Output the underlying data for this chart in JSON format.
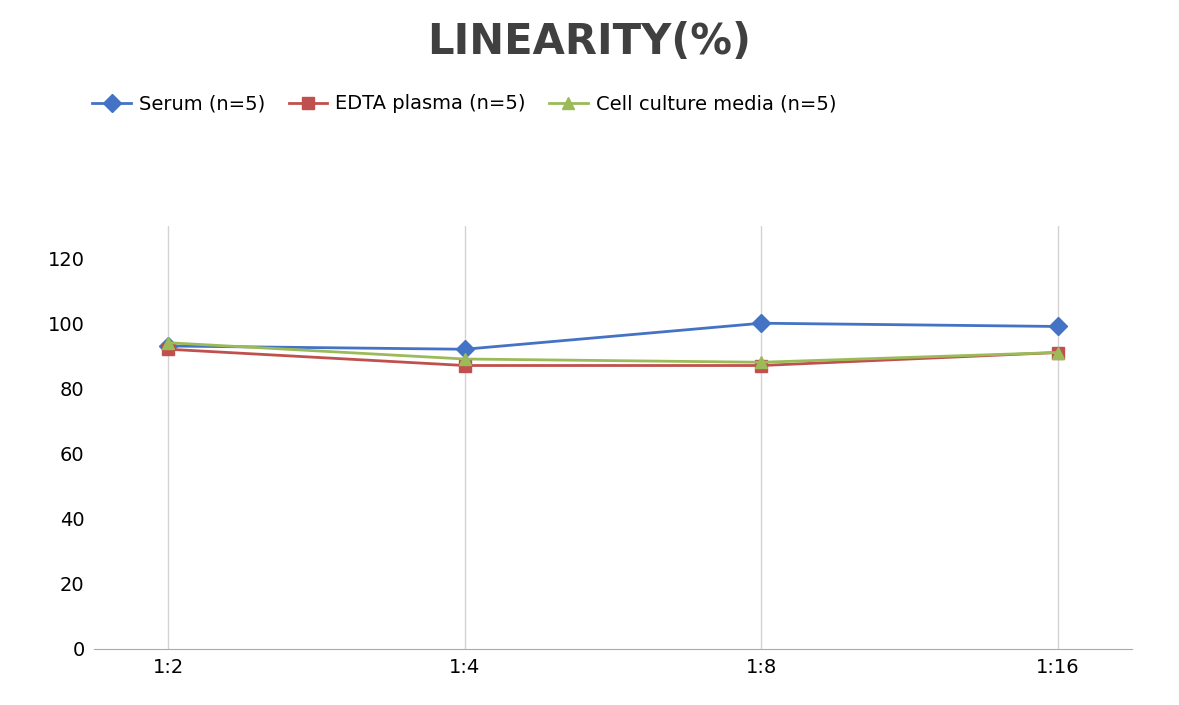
{
  "title": "LINEARITY(%)",
  "title_fontsize": 30,
  "title_fontweight": "bold",
  "title_color": "#404040",
  "x_labels": [
    "1:2",
    "1:4",
    "1:8",
    "1:16"
  ],
  "x_positions": [
    0,
    1,
    2,
    3
  ],
  "series": [
    {
      "label": "Serum (n=5)",
      "values": [
        93,
        92,
        100,
        99
      ],
      "color": "#4472C4",
      "marker": "D",
      "markersize": 9,
      "linewidth": 2
    },
    {
      "label": "EDTA plasma (n=5)",
      "values": [
        92,
        87,
        87,
        91
      ],
      "color": "#C0504D",
      "marker": "s",
      "markersize": 9,
      "linewidth": 2
    },
    {
      "label": "Cell culture media (n=5)",
      "values": [
        94,
        89,
        88,
        91
      ],
      "color": "#9BBB59",
      "marker": "^",
      "markersize": 9,
      "linewidth": 2
    }
  ],
  "ylim": [
    0,
    130
  ],
  "yticks": [
    0,
    20,
    40,
    60,
    80,
    100,
    120
  ],
  "background_color": "#FFFFFF",
  "grid_color": "#D3D3D3",
  "legend_fontsize": 14,
  "tick_fontsize": 14
}
